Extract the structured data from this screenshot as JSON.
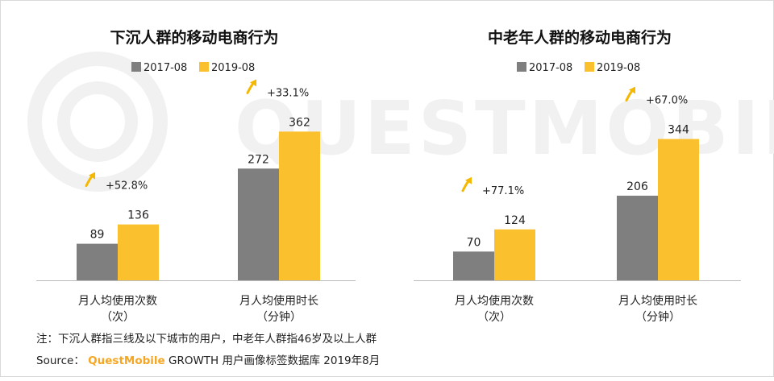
{
  "watermark": "QUESTMOBILE",
  "colors": {
    "series_2017": "#7f7f7f",
    "series_2019": "#fbc02d",
    "arrow": "#f5b800",
    "axis": "#bdbdbd"
  },
  "chart_data": [
    {
      "type": "bar",
      "title": "下沉人群的移动电商行为",
      "legend": [
        "2017-08",
        "2019-08"
      ],
      "categories": [
        [
          "月人均使用次数",
          "（次）"
        ],
        [
          "月人均使用时长",
          "（分钟）"
        ]
      ],
      "series": [
        {
          "name": "2017-08",
          "values": [
            89,
            272
          ]
        },
        {
          "name": "2019-08",
          "values": [
            136,
            362
          ]
        }
      ],
      "growth": [
        "+52.8%",
        "+33.1%"
      ]
    },
    {
      "type": "bar",
      "title": "中老年人群的移动电商行为",
      "legend": [
        "2017-08",
        "2019-08"
      ],
      "categories": [
        [
          "月人均使用次数",
          "（次）"
        ],
        [
          "月人均使用时长",
          "（分钟）"
        ]
      ],
      "series": [
        {
          "name": "2017-08",
          "values": [
            70,
            206
          ]
        },
        {
          "name": "2019-08",
          "values": [
            124,
            344
          ]
        }
      ],
      "growth": [
        "+77.1%",
        "+67.0%"
      ]
    }
  ],
  "footer": {
    "note": "注：下沉人群指三线及以下城市的用户，中老年人群指46岁及以上人群",
    "source_prefix": "Source： ",
    "source_brand": "QuestMobile",
    "source_suffix": " GROWTH 用户画像标签数据库 2019年8月"
  }
}
